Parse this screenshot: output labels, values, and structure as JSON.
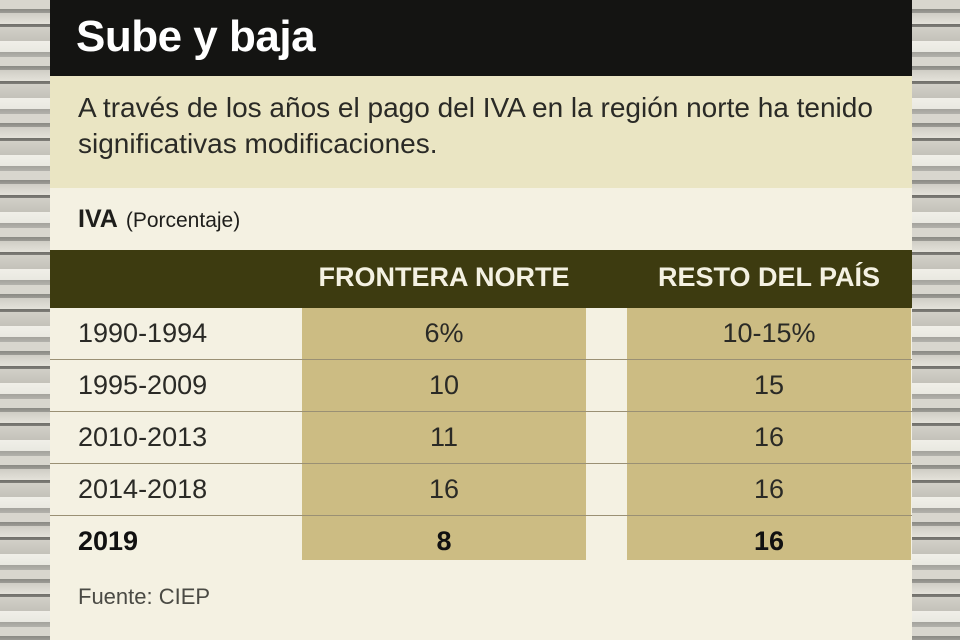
{
  "title": "Sube y baja",
  "subtitle": "A través de los años el pago del IVA en la región norte ha tenido significativas modificaciones.",
  "table_label": "IVA",
  "table_unit": "(Porcentaje)",
  "columns": [
    "FRONTERA NORTE",
    "RESTO DEL PAÍS"
  ],
  "source": "Fuente: CIEP",
  "colors": {
    "title_bar": "#141412",
    "header_band": "#3d3b10",
    "column_fill": "#ccbc83",
    "subtitle_band": "#eae5c3"
  },
  "chart_data": {
    "type": "table",
    "title": "Sube y baja",
    "columns": [
      "FRONTERA NORTE",
      "RESTO DEL PAÍS"
    ],
    "rows": [
      {
        "period": "1990-1994",
        "frontera_norte": "6%",
        "resto_del_pais": "10-15%"
      },
      {
        "period": "1995-2009",
        "frontera_norte": "10",
        "resto_del_pais": "15"
      },
      {
        "period": "2010-2013",
        "frontera_norte": "11",
        "resto_del_pais": "16"
      },
      {
        "period": "2014-2018",
        "frontera_norte": "16",
        "resto_del_pais": "16"
      },
      {
        "period": "2019",
        "frontera_norte": "8",
        "resto_del_pais": "16",
        "bold": true
      }
    ]
  }
}
